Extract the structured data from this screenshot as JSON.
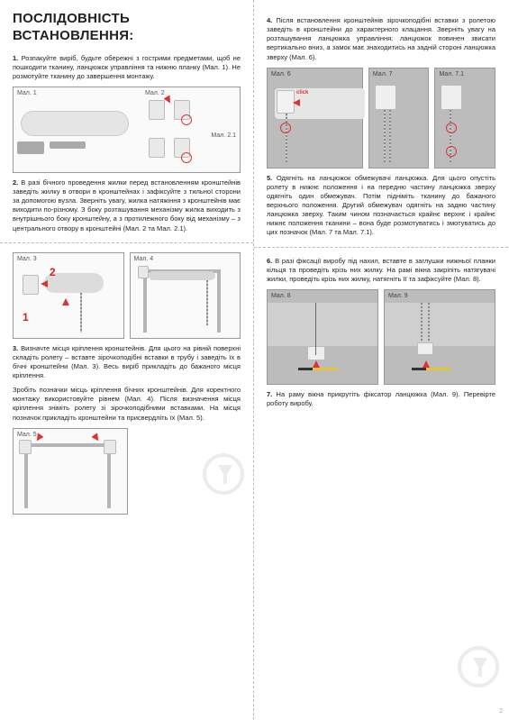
{
  "title": "ПОСЛІДОВНІСТЬ ВСТАНОВЛЕННЯ:",
  "page_number": "2",
  "left": {
    "p1": "1. Розпакуйте виріб, будьте обережні з гострими предметами, щоб не пошкодити тканину, ланцюжок управління та нижню планку (Мал. 1). Не розмотуйте тканину до завершення монтажу.",
    "p2": "2. В разі бічного проведення жилки перед встановленням кронштейнів заведіть жилку в отвори в кронштейнах і зафіксуйте з тильної сторони за допомогою вузла. Зверніть увагу, жилка натяжіння з кронштейнів має виходити по-різному. З боку розташування механізму жилка виходить з внутрішнього боку кронштейну, а з протилежного боку від механізму – з центрального отвору в кронштейні (Мал. 2 та Мал. 2.1).",
    "p3": "3. Визначте місця кріплення кронштейнів. Для цього на рівній поверхні складіть ролету – вставте зірочкоподібні вставки в трубу і заведіть їх в бічні кронштейни (Мал. 3). Весь виріб прикладіть до бажаного місця кріплення.",
    "p3b": "Зробіть позначки місць кріплення бічних кронштейнів. Для коректного монтажу використовуйте рівнем (Мал. 4). Після визначення місця кріплення зніміть ролету зі зірочкоподібними вставками. На місця позначок прикладіть кронштейни та присвердліть їх (Мал. 5).",
    "figs": {
      "f1": "Мал. 1",
      "f2": "Мал. 2",
      "f21": "Мал. 2.1",
      "f3": "Мал. 3",
      "f4": "Мал. 4",
      "f5": "Мал. 5"
    }
  },
  "right": {
    "p4": "4. Після встановлення кронштейнів зірочкоподібні вставки з ролетою заведіть в кронштейни до характерного клацання. Зверніть увагу на розташування ланцюжка управління: ланцюжок повинен звисати вертикально вниз, а замок має знаходитись на задній стороні ланцюжка зверху (Мал. 6).",
    "p5": "5. Одягніть на ланцюжок обмежувачі ланцюжка. Для цього опустіть ролету в нижнє положення і на передню частину ланцюжка зверху одягніть один обмежувач. Потім підніміть тканину до бажаного верхнього положення. Другий обмежувач одягніть на задню частину ланцюжка зверху. Таким чином позначається крайнє верхнє і крайнє нижнє положення тканини – вона буде розмотуватись і змотуватись до цих позначок (Мал. 7 та Мал. 7.1).",
    "p6": "6. В разі фіксації виробу під нахил, вставте в заглушки нижньої планки кільця та проведіть крізь них жилку. На рамі вікна закріпіть натягувачі жилки, проведіть крізь них жилку, натягніть її та зафіксуйте (Мал. 8).",
    "p7": "7. На раму вікна прикрутіть фіксатор ланцюжка (Мал. 9). Перевірте роботу виробу.",
    "figs": {
      "f6": "Мал. 6",
      "f7": "Мал. 7",
      "f71": "Мал. 7.1",
      "f8": "Мал. 8",
      "f9": "Мал. 9",
      "click": "click"
    }
  },
  "colors": {
    "red": "#d33",
    "grey": "#bcbcbc",
    "border": "#999",
    "text": "#222"
  }
}
